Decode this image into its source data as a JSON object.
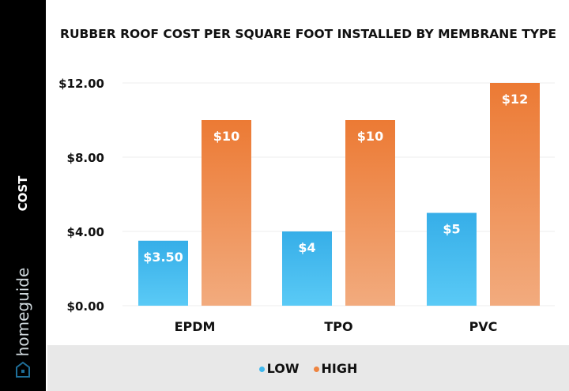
{
  "brand": "homeguide",
  "chart_data": {
    "type": "bar",
    "title": "RUBBER ROOF COST PER SQUARE FOOT INSTALLED BY MEMBRANE TYPE",
    "ylabel": "COST",
    "xlabel": "",
    "categories": [
      "EPDM",
      "TPO",
      "PVC"
    ],
    "series": [
      {
        "name": "LOW",
        "values": [
          3.5,
          4,
          5
        ],
        "labels": [
          "$3.50",
          "$4",
          "$5"
        ],
        "color": "#3fb8ee"
      },
      {
        "name": "HIGH",
        "values": [
          10,
          10,
          12
        ],
        "labels": [
          "$10",
          "$10",
          "$12"
        ],
        "color": "#ee8440"
      }
    ],
    "ylim": [
      0,
      12
    ],
    "yticks": [
      0,
      4,
      8,
      12
    ],
    "ytick_labels": [
      "$0.00",
      "$4.00",
      "$8.00",
      "$12.00"
    ],
    "grid": true,
    "legend": "bottom"
  }
}
